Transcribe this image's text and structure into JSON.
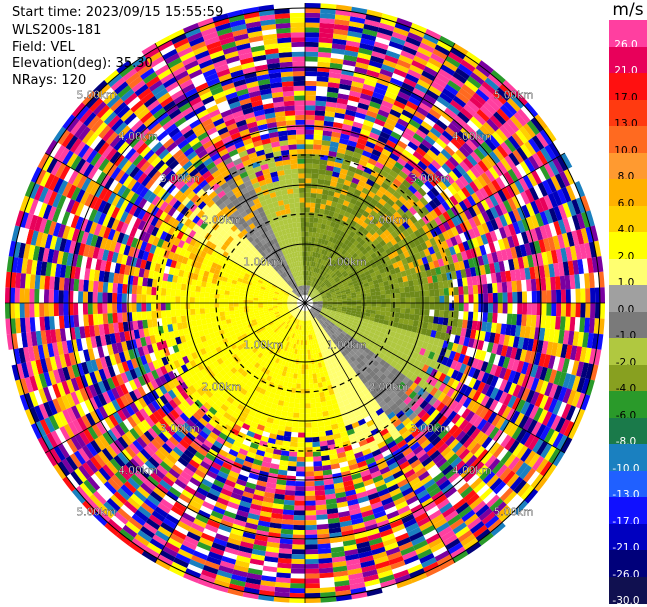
{
  "header": {
    "start_time": "Start time: 2023/09/15 15:55:59",
    "instrument": "WLS200s-181",
    "field": "Field: VEL",
    "elevation": "Elevation(deg): 35.30",
    "nrays": "NRays: 120"
  },
  "colorbar": {
    "unit": "m/s",
    "ticks": [
      "26.0",
      "21.0",
      "17.0",
      "13.0",
      "10.0",
      "8.0",
      "6.0",
      "4.0",
      "2.0",
      "1.0",
      "0.0",
      "-1.0",
      "-2.0",
      "-4.0",
      "-6.0",
      "-8.0",
      "-10.0",
      "-13.0",
      "-17.0",
      "-21.0",
      "-26.0",
      "-30.0"
    ],
    "colors": [
      "#ff3fa0",
      "#e8005a",
      "#ff1010",
      "#ff3a10",
      "#ff6a20",
      "#ff9a30",
      "#ffb000",
      "#ffd000",
      "#ffff00",
      "#ffff70",
      "#a0a0a0",
      "#7a7a7a",
      "#b0c840",
      "#88a020",
      "#2a9a2a",
      "#1a7a4a",
      "#1a80c0",
      "#2060ff",
      "#1010ff",
      "#0000c0",
      "#00007a",
      "#101050"
    ]
  },
  "range_rings": {
    "labels": [
      "1.00km",
      "2.00km",
      "3.00km",
      "4.00km",
      "5.00km"
    ]
  }
}
